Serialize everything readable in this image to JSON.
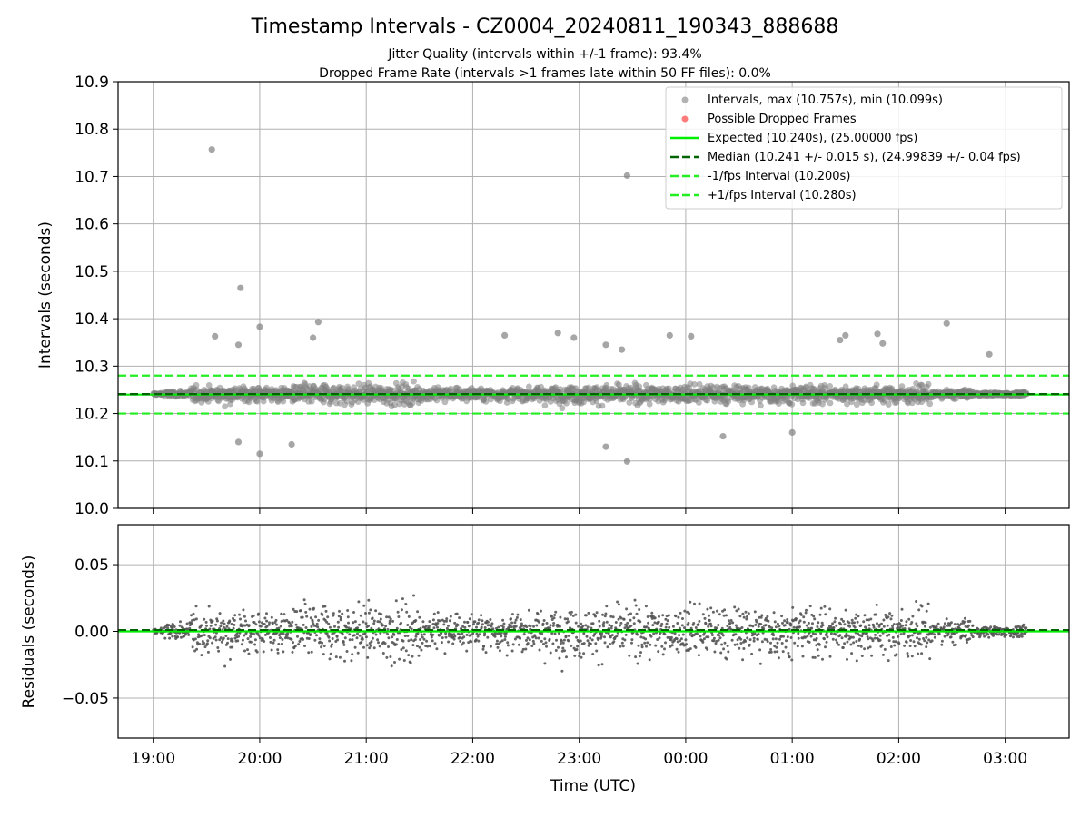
{
  "chart_data": [
    {
      "type": "scatter",
      "title": "Timestamp Intervals - CZ0004_20240811_190343_888688",
      "subtitle_lines": [
        "Jitter Quality (intervals within +/-1 frame): 93.4%",
        "Dropped Frame Rate (intervals >1 frames late within 50 FF files): 0.0%"
      ],
      "ylabel": "Intervals (seconds)",
      "ylim": [
        10.0,
        10.9
      ],
      "yticks": [
        10.0,
        10.1,
        10.2,
        10.3,
        10.4,
        10.5,
        10.6,
        10.7,
        10.8,
        10.9
      ],
      "ytick_labels": [
        "10.0",
        "10.1",
        "10.2",
        "10.3",
        "10.4",
        "10.5",
        "10.6",
        "10.7",
        "10.8",
        "10.9"
      ],
      "grid": true,
      "legend_position": "top-right",
      "legend": [
        "Intervals, max (10.757s), min (10.099s)",
        "Possible Dropped Frames",
        "Expected (10.240s), (25.00000 fps)",
        "Median (10.241 +/- 0.015 s), (24.99839 +/- 0.04 fps)",
        "-1/fps Interval (10.200s)",
        "+1/fps Interval (10.280s)"
      ],
      "reference_lines": {
        "expected": 10.24,
        "median": 10.241,
        "minus_one_fps": 10.2,
        "plus_one_fps": 10.28
      },
      "x_start_hours": 19.0,
      "x_end_hours": 27.2,
      "notable_points": [
        {
          "t": 19.55,
          "y": 10.757
        },
        {
          "t": 23.45,
          "y": 10.702
        },
        {
          "t": 19.82,
          "y": 10.465
        },
        {
          "t": 19.58,
          "y": 10.363
        },
        {
          "t": 19.8,
          "y": 10.345
        },
        {
          "t": 20.0,
          "y": 10.383
        },
        {
          "t": 20.55,
          "y": 10.393
        },
        {
          "t": 20.5,
          "y": 10.36
        },
        {
          "t": 22.3,
          "y": 10.365
        },
        {
          "t": 22.8,
          "y": 10.37
        },
        {
          "t": 22.95,
          "y": 10.36
        },
        {
          "t": 23.25,
          "y": 10.345
        },
        {
          "t": 23.4,
          "y": 10.335
        },
        {
          "t": 23.85,
          "y": 10.365
        },
        {
          "t": 24.05,
          "y": 10.363
        },
        {
          "t": 25.45,
          "y": 10.355
        },
        {
          "t": 25.5,
          "y": 10.365
        },
        {
          "t": 25.8,
          "y": 10.368
        },
        {
          "t": 25.85,
          "y": 10.348
        },
        {
          "t": 26.45,
          "y": 10.39
        },
        {
          "t": 26.85,
          "y": 10.325
        },
        {
          "t": 19.8,
          "y": 10.14
        },
        {
          "t": 20.0,
          "y": 10.115
        },
        {
          "t": 20.3,
          "y": 10.135
        },
        {
          "t": 23.25,
          "y": 10.13
        },
        {
          "t": 23.45,
          "y": 10.099
        },
        {
          "t": 24.35,
          "y": 10.152
        },
        {
          "t": 25.0,
          "y": 10.16
        }
      ]
    },
    {
      "type": "scatter",
      "ylabel": "Residuals (seconds)",
      "xlabel": "Time (UTC)",
      "ylim": [
        -0.08,
        0.08
      ],
      "yticks": [
        -0.05,
        0.0,
        0.05
      ],
      "ytick_labels": [
        "−0.05",
        "0.00",
        "0.05"
      ],
      "x_ticks_hours": [
        19,
        20,
        21,
        22,
        23,
        24,
        25,
        26,
        27
      ],
      "x_tick_labels": [
        "19:00",
        "20:00",
        "21:00",
        "22:00",
        "23:00",
        "00:00",
        "01:00",
        "02:00",
        "03:00"
      ],
      "reference_lines": {
        "zero": 0.0,
        "median_offset": 0.001
      },
      "grid": true
    }
  ],
  "colors": {
    "intervals": "#808080",
    "dropped": "#ff4444",
    "expected": "#00ee00",
    "median": "#006400",
    "fps_bounds": "#22ee22",
    "residuals": "#555555",
    "grid": "#b0b0b0"
  }
}
